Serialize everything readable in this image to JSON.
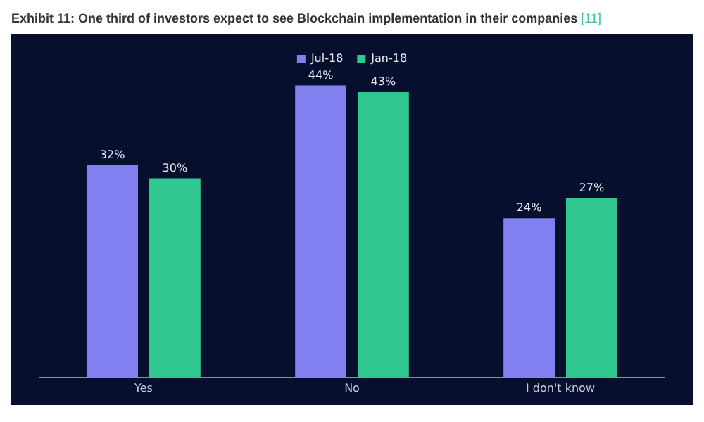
{
  "chart_data": {
    "type": "bar",
    "title": "Exhibit 11: One third of investors expect to see Blockchain implementation in their companies",
    "annotations": [
      "[11]"
    ],
    "categories": [
      "Yes",
      "No",
      "I don't know"
    ],
    "series": [
      {
        "name": "Jul-18",
        "color": "#8080f0",
        "values": [
          32,
          44,
          24
        ],
        "value_labels": [
          "32%",
          "44%",
          "24%"
        ]
      },
      {
        "name": "Jan-18",
        "color": "#30c890",
        "values": [
          30,
          43,
          27
        ],
        "value_labels": [
          "30%",
          "43%",
          "27%"
        ]
      }
    ],
    "legend": "top"
  }
}
